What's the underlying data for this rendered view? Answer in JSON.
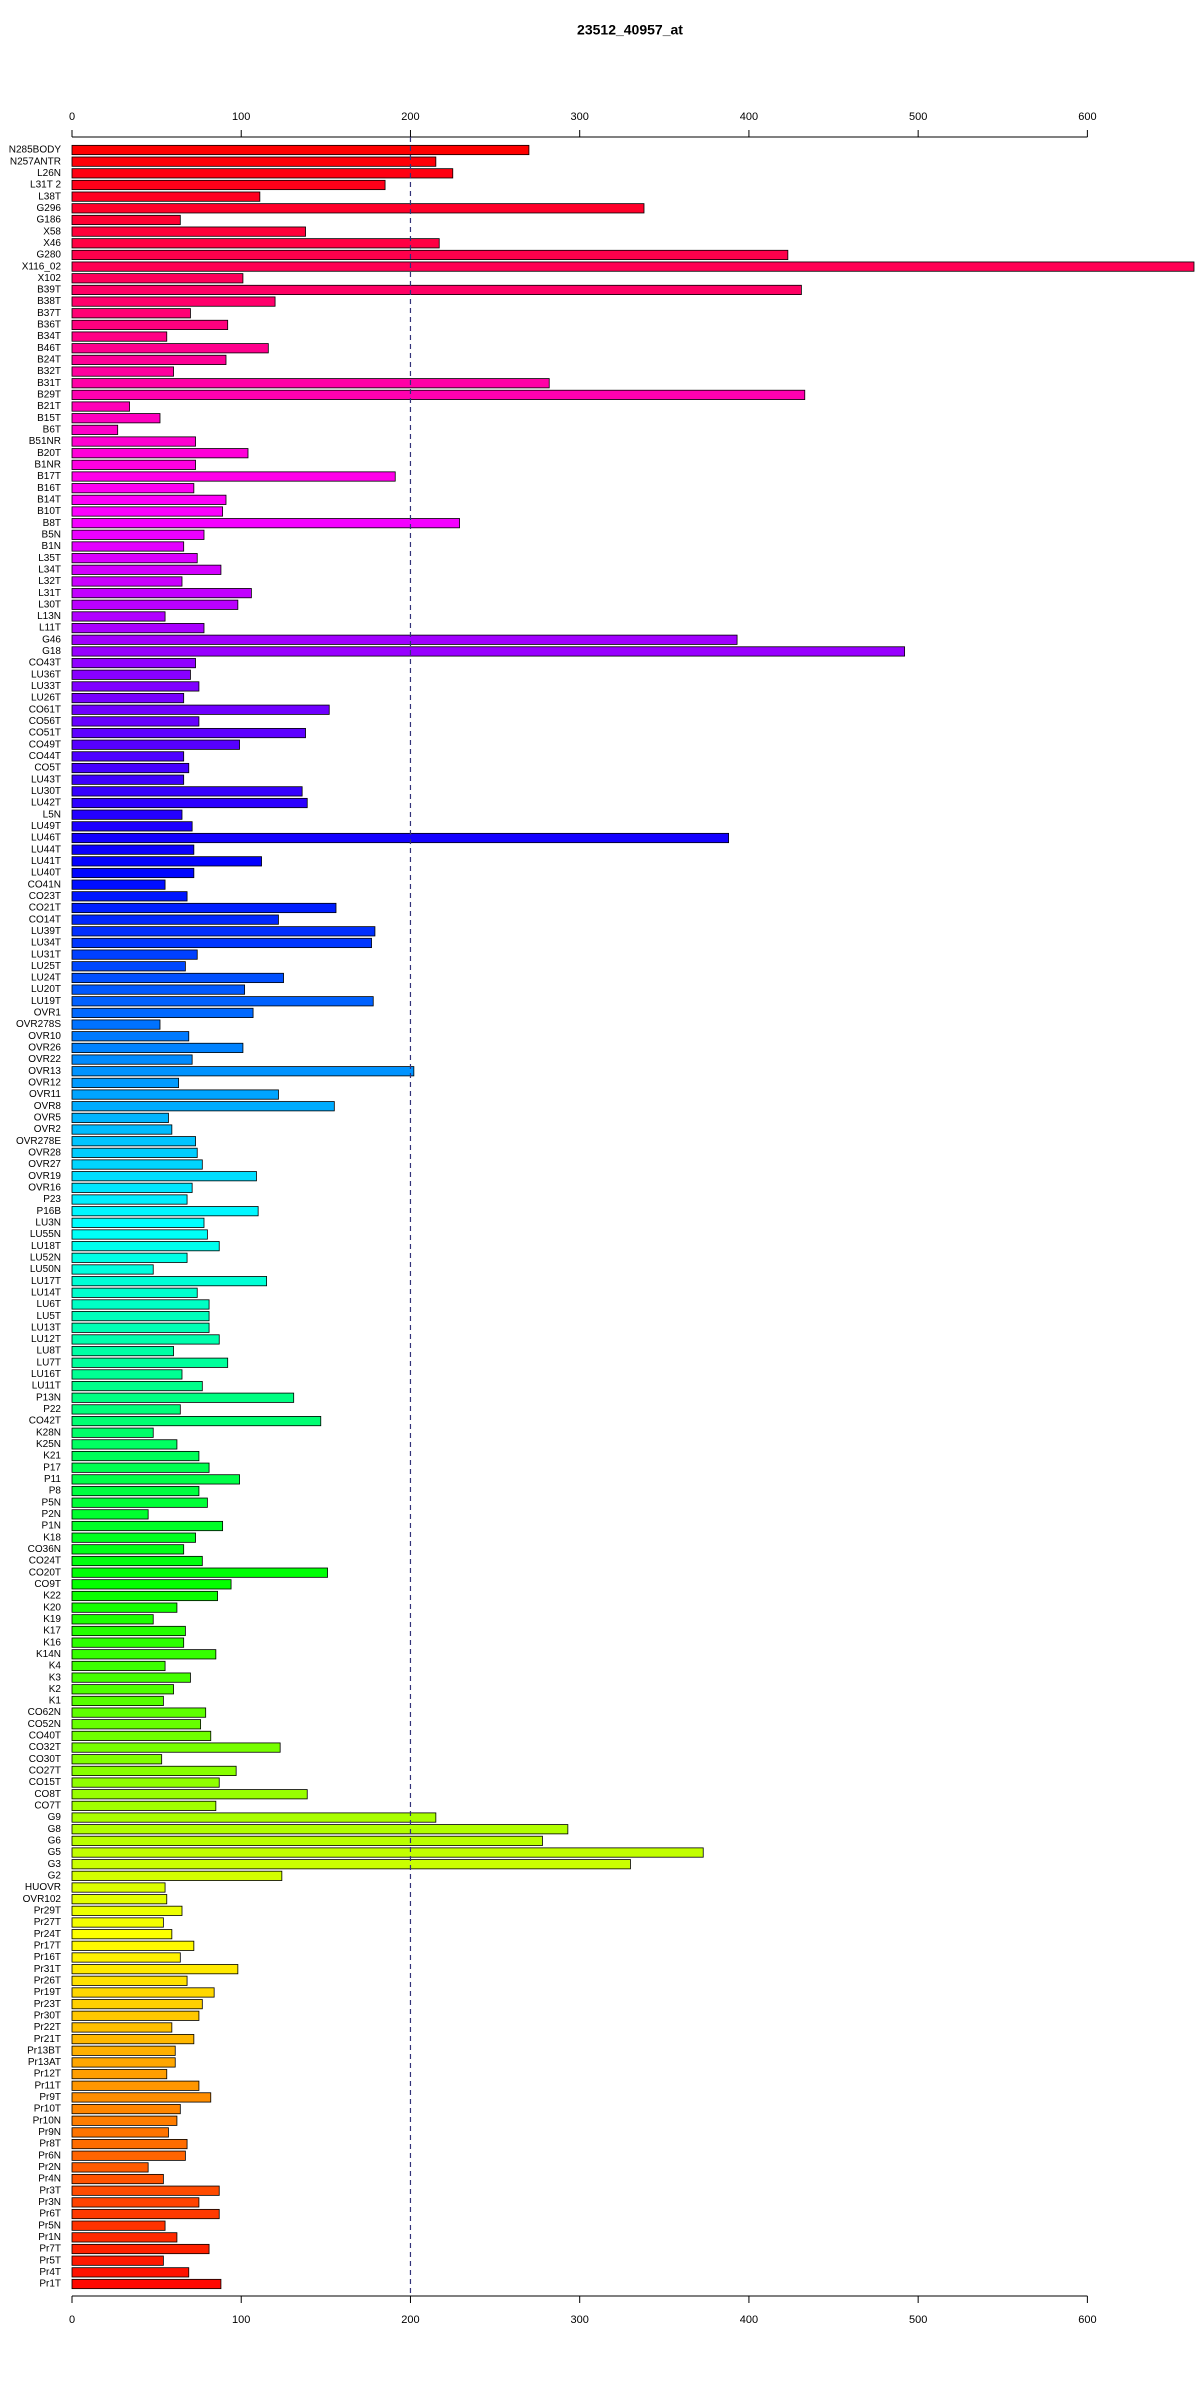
{
  "chart_data": {
    "type": "barh",
    "title": "23512_40957_at",
    "categories": [
      "N285BODY",
      "N257ANTR",
      "L26N",
      "L31T 2",
      "L38T",
      "G296",
      "G186",
      "X58",
      "X46",
      "G280",
      "X116_02",
      "X102",
      "B39T",
      "B38T",
      "B37T",
      "B36T",
      "B34T",
      "B46T",
      "B24T",
      "B32T",
      "B31T",
      "B29T",
      "B21T",
      "B15T",
      "B6T",
      "B51NR",
      "B20T",
      "B1NR",
      "B17T",
      "B16T",
      "B14T",
      "B10T",
      "B8T",
      "B5N",
      "B1N",
      "L35T",
      "L34T",
      "L32T",
      "L31T",
      "L30T",
      "L13N",
      "L11T",
      "G46",
      "G18",
      "CO43T",
      "LU36T",
      "LU33T",
      "LU26T",
      "CO61T",
      "CO56T",
      "CO51T",
      "CO49T",
      "CO44T",
      "CO5T",
      "LU43T",
      "LU30T",
      "LU42T",
      "L5N",
      "LU49T",
      "LU46T",
      "LU44T",
      "LU41T",
      "LU40T",
      "CO41N",
      "CO23T",
      "CO21T",
      "CO14T",
      "LU39T",
      "LU34T",
      "LU31T",
      "LU25T",
      "LU24T",
      "LU20T",
      "LU19T",
      "OVR1",
      "OVR278S",
      "OVR10",
      "OVR26",
      "OVR22",
      "OVR13",
      "OVR12",
      "OVR11",
      "OVR8",
      "OVR5",
      "OVR2",
      "OVR278E",
      "OVR28",
      "OVR27",
      "OVR19",
      "OVR16",
      "P23",
      "P16B",
      "LU3N",
      "LU55N",
      "LU18T",
      "LU52N",
      "LU50N",
      "LU17T",
      "LU14T",
      "LU6T",
      "LU5T",
      "LU13T",
      "LU12T",
      "LU8T",
      "LU7T",
      "LU16T",
      "LU11T",
      "P13N",
      "P22",
      "CO42T",
      "K28N",
      "K25N",
      "K21",
      "P17",
      "P11",
      "P8",
      "P5N",
      "P2N",
      "P1N",
      "K18",
      "CO36N",
      "CO24T",
      "CO20T",
      "CO9T",
      "K22",
      "K20",
      "K19",
      "K17",
      "K16",
      "K14N",
      "K4",
      "K3",
      "K2",
      "K1",
      "CO62N",
      "CO52N",
      "CO40T",
      "CO32T",
      "CO30T",
      "CO27T",
      "CO15T",
      "CO8T",
      "CO7T",
      "G9",
      "G8",
      "G6",
      "G5",
      "G3",
      "G2",
      "HUOVR",
      "OVR102",
      "Pr29T",
      "Pr27T",
      "Pr24T",
      "Pr17T",
      "Pr16T",
      "Pr31T",
      "Pr26T",
      "Pr19T",
      "Pr23T",
      "Pr30T",
      "Pr22T",
      "Pr21T",
      "Pr13BT",
      "Pr13AT",
      "Pr12T",
      "Pr11T",
      "Pr9T",
      "Pr10T",
      "Pr10N",
      "Pr9N",
      "Pr8T",
      "Pr6N",
      "Pr2N",
      "Pr4N",
      "Pr3T",
      "Pr3N",
      "Pr6T",
      "Pr5N",
      "Pr1N",
      "Pr7T",
      "Pr5T",
      "Pr4T",
      "Pr1T"
    ],
    "values": [
      270,
      215,
      225,
      185,
      111,
      338,
      64,
      138,
      217,
      423,
      663,
      101,
      431,
      120,
      70,
      92,
      56,
      116,
      91,
      60,
      282,
      433,
      34,
      52,
      27,
      73,
      104,
      73,
      191,
      72,
      91,
      89,
      229,
      78,
      66,
      74,
      88,
      65,
      106,
      98,
      55,
      78,
      393,
      492,
      73,
      70,
      75,
      66,
      152,
      75,
      138,
      99,
      66,
      69,
      66,
      136,
      139,
      65,
      71,
      388,
      72,
      112,
      72,
      55,
      68,
      156,
      122,
      179,
      177,
      74,
      67,
      125,
      102,
      178,
      107,
      52,
      69,
      101,
      71,
      202,
      63,
      122,
      155,
      57,
      59,
      73,
      74,
      77,
      109,
      71,
      68,
      110,
      78,
      80,
      87,
      68,
      48,
      115,
      74,
      81,
      81,
      81,
      87,
      60,
      92,
      65,
      77,
      131,
      64,
      147,
      48,
      62,
      75,
      81,
      99,
      75,
      80,
      45,
      89,
      73,
      66,
      77,
      151,
      94,
      86,
      62,
      48,
      67,
      66,
      85,
      55,
      70,
      60,
      54,
      79,
      76,
      82,
      123,
      53,
      97,
      87,
      139,
      85,
      215,
      293,
      278,
      373,
      330,
      124,
      55,
      56,
      65,
      54,
      59,
      72,
      64,
      98,
      68,
      84,
      77,
      75,
      59,
      72,
      61,
      61,
      56,
      75,
      82,
      64,
      62,
      57,
      68,
      67,
      45,
      54,
      87,
      75,
      87,
      55,
      62,
      81,
      54,
      69,
      88
    ],
    "xlim": [
      0,
      663
    ],
    "xticks": [
      0,
      100,
      200,
      300,
      400,
      500,
      600
    ],
    "vline": 200,
    "color_scheme": "rainbow-reverse"
  }
}
